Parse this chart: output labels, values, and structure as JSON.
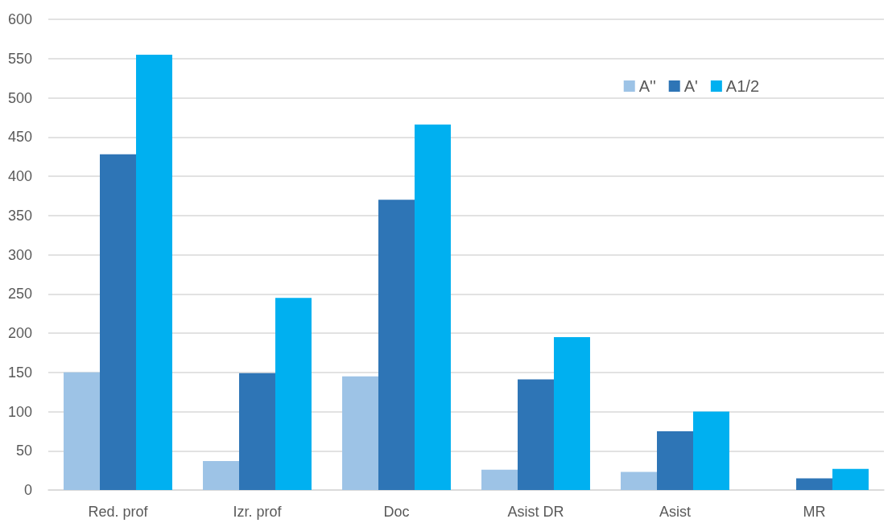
{
  "chart_data": {
    "type": "bar",
    "categories": [
      "Red. prof",
      "Izr. prof",
      "Doc",
      "Asist DR",
      "Asist",
      "MR"
    ],
    "series": [
      {
        "name": "A''",
        "color": "#9dc3e6",
        "values": [
          150,
          37,
          145,
          26,
          23,
          0
        ]
      },
      {
        "name": "A'",
        "color": "#2e75b6",
        "values": [
          428,
          149,
          370,
          141,
          75,
          15
        ]
      },
      {
        "name": "A1/2",
        "color": "#00b0f0",
        "values": [
          555,
          245,
          466,
          195,
          100,
          27
        ]
      }
    ],
    "ylim": [
      0,
      600
    ],
    "yticks": [
      0,
      50,
      100,
      150,
      200,
      250,
      300,
      350,
      400,
      450,
      500,
      550,
      600
    ],
    "grid": "y",
    "legend": "top right"
  }
}
